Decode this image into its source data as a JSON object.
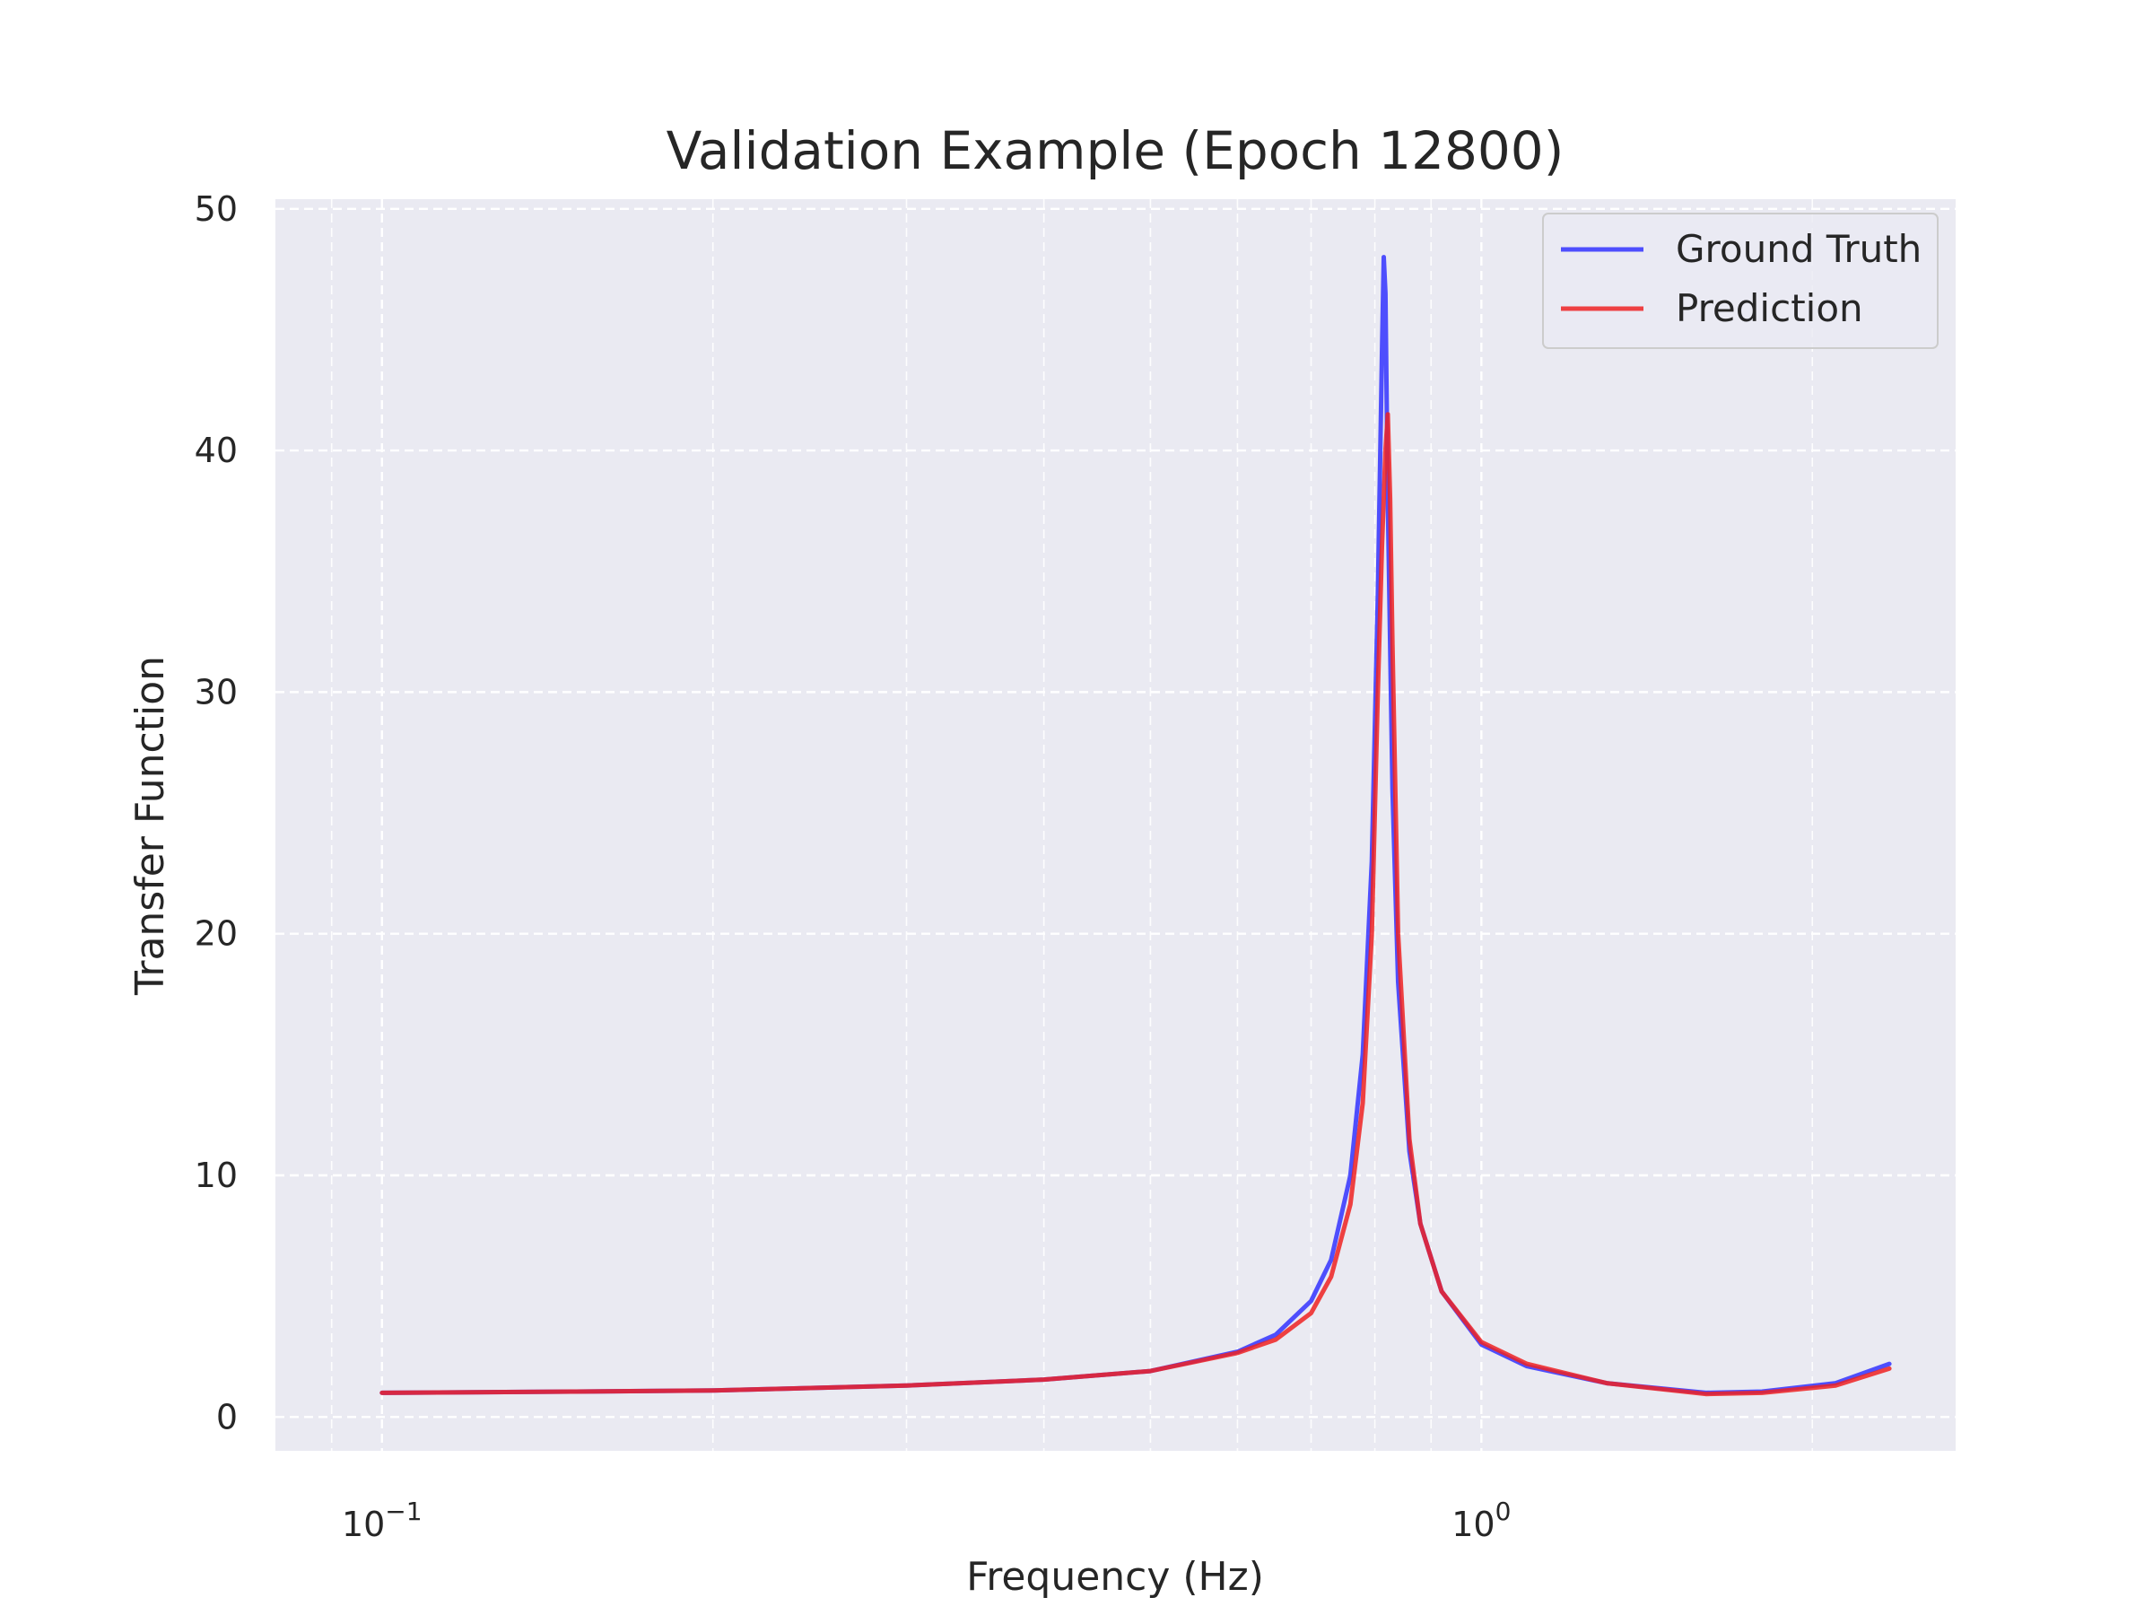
{
  "chart_data": {
    "type": "line",
    "title": "Validation Example (Epoch 12800)",
    "xlabel": "Frequency (Hz)",
    "ylabel": "Transfer Function",
    "xscale": "log",
    "xlim": [
      0.08,
      2.7
    ],
    "ylim": [
      -1.4,
      50.4
    ],
    "xticks": [
      {
        "value": 0.1,
        "base": "10",
        "exp": "−1"
      },
      {
        "value": 1.0,
        "base": "10",
        "exp": "0"
      }
    ],
    "yticks": [
      0,
      10,
      20,
      30,
      40,
      50
    ],
    "grid": true,
    "grid_style": "dashed",
    "legend_position": "top-right",
    "series": [
      {
        "name": "Ground Truth",
        "color": "#3333ff",
        "x": [
          0.1,
          0.15,
          0.2,
          0.3,
          0.4,
          0.5,
          0.6,
          0.65,
          0.7,
          0.73,
          0.76,
          0.78,
          0.795,
          0.805,
          0.812,
          0.815,
          0.818,
          0.822,
          0.83,
          0.84,
          0.86,
          0.88,
          0.92,
          1.0,
          1.1,
          1.3,
          1.6,
          1.8,
          2.1,
          2.35
        ],
        "y": [
          1.0,
          1.05,
          1.1,
          1.3,
          1.55,
          1.9,
          2.7,
          3.4,
          4.8,
          6.5,
          10.0,
          15.0,
          23.0,
          34.0,
          44.0,
          48.0,
          46.5,
          38.0,
          26.0,
          18.0,
          11.0,
          8.0,
          5.2,
          3.0,
          2.1,
          1.4,
          1.0,
          1.05,
          1.4,
          2.2
        ]
      },
      {
        "name": "Prediction",
        "color": "#ee2222",
        "x": [
          0.1,
          0.15,
          0.2,
          0.3,
          0.4,
          0.5,
          0.6,
          0.65,
          0.7,
          0.73,
          0.76,
          0.78,
          0.795,
          0.805,
          0.812,
          0.818,
          0.822,
          0.826,
          0.83,
          0.84,
          0.86,
          0.88,
          0.92,
          1.0,
          1.1,
          1.3,
          1.6,
          1.8,
          2.1,
          2.35
        ],
        "y": [
          1.0,
          1.05,
          1.1,
          1.3,
          1.55,
          1.9,
          2.65,
          3.2,
          4.3,
          5.8,
          8.8,
          13.0,
          20.0,
          30.0,
          36.0,
          40.0,
          41.5,
          38.0,
          32.0,
          20.0,
          11.5,
          8.0,
          5.2,
          3.1,
          2.2,
          1.4,
          0.95,
          1.0,
          1.3,
          2.0
        ]
      }
    ]
  }
}
